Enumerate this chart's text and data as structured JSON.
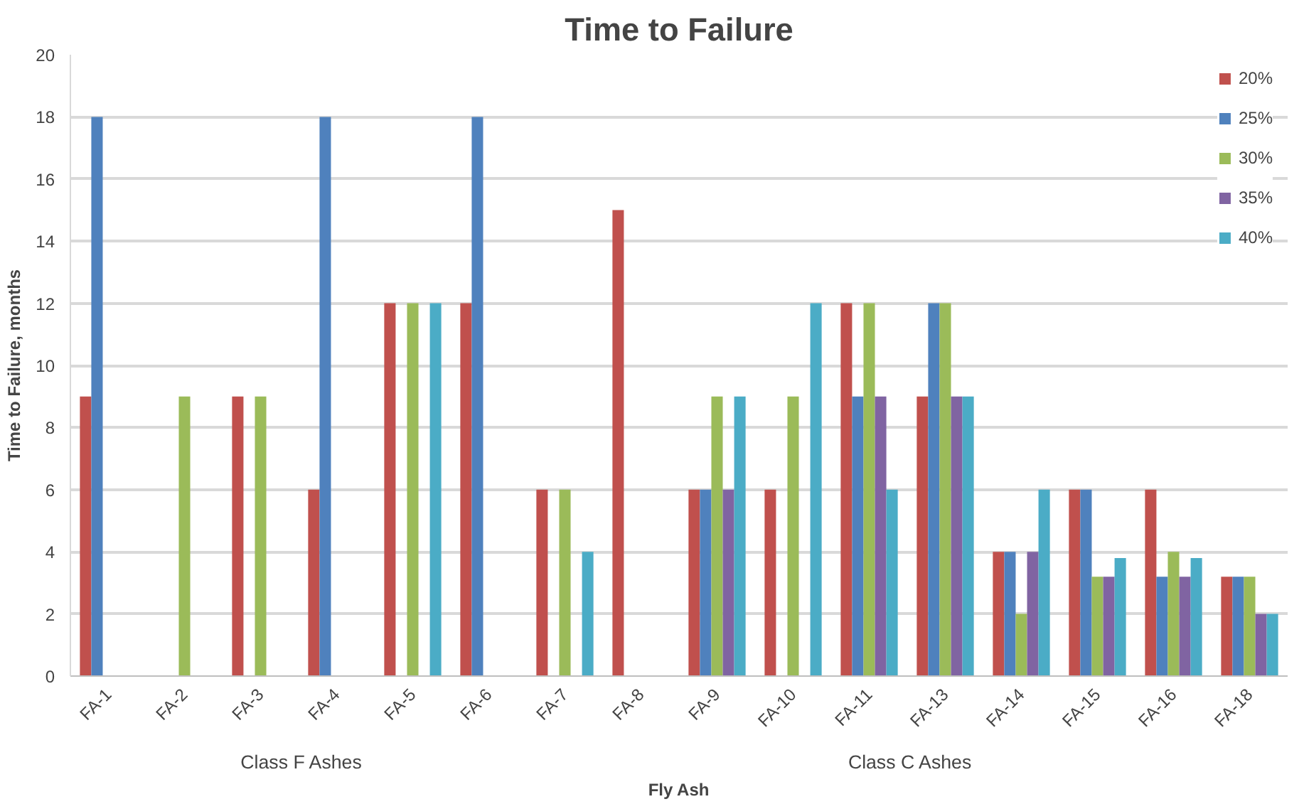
{
  "chart_data": {
    "type": "bar",
    "title": "Time to Failure",
    "xlabel": "Fly Ash",
    "ylabel": "Time to Failure, months",
    "categories": [
      "FA-1",
      "FA-2",
      "FA-3",
      "FA-4",
      "FA-5",
      "FA-6",
      "FA-7",
      "FA-8",
      "FA-9",
      "FA-10",
      "FA-11",
      "FA-13",
      "FA-14",
      "FA-15",
      "FA-16",
      "FA-18"
    ],
    "series": [
      {
        "name": "20%",
        "color": "#c0504d",
        "values": [
          9,
          null,
          9,
          6,
          12,
          12,
          6,
          15,
          6,
          6,
          12,
          9,
          4,
          6,
          6,
          3.2
        ]
      },
      {
        "name": "25%",
        "color": "#4f81bd",
        "values": [
          18,
          null,
          null,
          18,
          null,
          18,
          null,
          null,
          6,
          null,
          9,
          12,
          4,
          6,
          3.2,
          3.2
        ]
      },
      {
        "name": "30%",
        "color": "#9bbb59",
        "values": [
          null,
          9,
          9,
          null,
          12,
          null,
          6,
          null,
          9,
          9,
          12,
          12,
          2,
          3.2,
          4,
          3.2
        ]
      },
      {
        "name": "35%",
        "color": "#8064a2",
        "values": [
          null,
          null,
          null,
          null,
          null,
          null,
          null,
          null,
          6,
          null,
          9,
          9,
          4,
          3.2,
          3.2,
          2
        ]
      },
      {
        "name": "40%",
        "color": "#4bacc6",
        "values": [
          null,
          null,
          null,
          null,
          12,
          null,
          4,
          null,
          9,
          12,
          6,
          9,
          6,
          3.8,
          3.8,
          2
        ]
      }
    ],
    "ylim": [
      0,
      20
    ],
    "yticks": [
      0,
      2,
      4,
      6,
      8,
      10,
      12,
      14,
      16,
      18,
      20
    ],
    "grid": "y",
    "legend": "top right",
    "annotations": [
      "Class F Ashes",
      "Class C Ashes"
    ]
  }
}
